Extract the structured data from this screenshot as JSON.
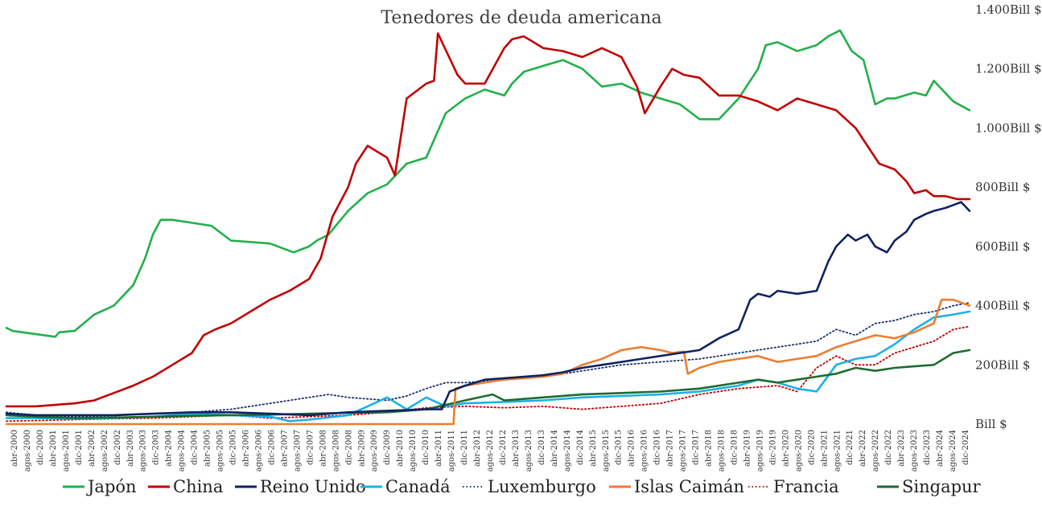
{
  "chart_data": {
    "type": "line",
    "title": "Tenedores de deuda americana",
    "y_unit_suffix": "Bill $",
    "ylim": [
      0,
      1400
    ],
    "yticks": [
      {
        "value": 0,
        "label": "Bill $"
      },
      {
        "value": 200,
        "label": "200Bill $"
      },
      {
        "value": 400,
        "label": "400Bill $"
      },
      {
        "value": 600,
        "label": "600Bill $"
      },
      {
        "value": 800,
        "label": "800Bill $"
      },
      {
        "value": 1000,
        "label": "1.000Bill $"
      },
      {
        "value": 1200,
        "label": "1.200Bill $"
      },
      {
        "value": 1400,
        "label": "1.400Bill $"
      }
    ],
    "xlim": [
      2000.25,
      2024.917
    ],
    "x_tick_labels": [
      "abr-2000",
      "agos-2000",
      "dic-2000",
      "abr-2001",
      "agos-2001",
      "dic-2001",
      "abr-2002",
      "agos-2002",
      "dic-2002",
      "abr-2003",
      "agos-2003",
      "dic-2003",
      "abr-2004",
      "agos-2004",
      "dic-2004",
      "abr-2005",
      "agos-2005",
      "dic-2005",
      "abr-2006",
      "agos-2006",
      "dic-2006",
      "abr-2007",
      "agos-2007",
      "dic-2007",
      "abr-2008",
      "agos-2008",
      "dic-2008",
      "abr-2009",
      "agos-2009",
      "dic-2009",
      "abr-2010",
      "agos-2010",
      "dic-2010",
      "abr-2011",
      "agos-2011",
      "dic-2011",
      "abr-2012",
      "agos-2012",
      "dic-2012",
      "abr-2013",
      "agos-2013",
      "dic-2013",
      "abr-2014",
      "agos-2014",
      "dic-2014",
      "abr-2015",
      "agos-2015",
      "dic-2015",
      "abr-2016",
      "agos-2016",
      "dic-2016",
      "abr-2017",
      "agos-2017",
      "dic-2017",
      "abr-2018",
      "agos-2018",
      "dic-2018",
      "abr-2019",
      "agos-2019",
      "dic-2019",
      "abr-2020",
      "agos-2020",
      "dic-2020",
      "abr-2021",
      "agos-2021",
      "dic-2021",
      "abr-2022",
      "agos-2022",
      "dic-2022",
      "abr-2023",
      "agos-2023",
      "dic-2023",
      "abr-2024",
      "agos-2024",
      "dic-2024"
    ],
    "legend_position": "bottom",
    "series": [
      {
        "name": "Japón",
        "color": "#22b04b",
        "dash": "solid",
        "x": [
          2000.25,
          2000.4,
          2001.5,
          2001.6,
          2002.0,
          2002.5,
          2003.0,
          2003.5,
          2003.8,
          2004.0,
          2004.2,
          2004.5,
          2005.0,
          2005.5,
          2006.0,
          2006.5,
          2007.0,
          2007.6,
          2008.0,
          2008.2,
          2008.5,
          2009.0,
          2009.5,
          2010.0,
          2010.5,
          2011.0,
          2011.5,
          2011.8,
          2012.0,
          2012.5,
          2013.0,
          2013.2,
          2013.5,
          2014.0,
          2014.5,
          2015.0,
          2015.5,
          2016.0,
          2016.5,
          2017.0,
          2017.5,
          2018.0,
          2018.5,
          2019.0,
          2019.2,
          2019.5,
          2019.7,
          2020.0,
          2020.5,
          2021.0,
          2021.3,
          2021.6,
          2021.9,
          2022.2,
          2022.5,
          2022.8,
          2023.0,
          2023.5,
          2023.8,
          2024.0,
          2024.5,
          2024.917
        ],
        "values": [
          325,
          315,
          295,
          310,
          315,
          370,
          400,
          470,
          560,
          640,
          690,
          690,
          680,
          670,
          620,
          615,
          610,
          580,
          600,
          620,
          640,
          720,
          780,
          810,
          880,
          900,
          1050,
          1080,
          1100,
          1130,
          1110,
          1150,
          1190,
          1210,
          1230,
          1200,
          1140,
          1150,
          1120,
          1100,
          1080,
          1030,
          1030,
          1100,
          1140,
          1200,
          1280,
          1290,
          1260,
          1280,
          1310,
          1330,
          1260,
          1230,
          1080,
          1100,
          1100,
          1120,
          1110,
          1160,
          1090,
          1060
        ]
      },
      {
        "name": "China",
        "color": "#c00000",
        "dash": "solid",
        "x": [
          2000.25,
          2001.0,
          2002.0,
          2002.5,
          2003.0,
          2003.5,
          2004.0,
          2004.5,
          2005.0,
          2005.3,
          2005.6,
          2006.0,
          2006.5,
          2007.0,
          2007.5,
          2008.0,
          2008.3,
          2008.6,
          2009.0,
          2009.2,
          2009.5,
          2010.0,
          2010.2,
          2010.5,
          2011.0,
          2011.2,
          2011.3,
          2011.8,
          2012.0,
          2012.2,
          2012.5,
          2013.0,
          2013.2,
          2013.5,
          2014.0,
          2014.5,
          2015.0,
          2015.5,
          2016.0,
          2016.4,
          2016.6,
          2017.0,
          2017.3,
          2017.6,
          2018.0,
          2018.5,
          2019.0,
          2019.5,
          2020.0,
          2020.5,
          2021.0,
          2021.5,
          2022.0,
          2022.3,
          2022.6,
          2023.0,
          2023.3,
          2023.5,
          2023.8,
          2024.0,
          2024.3,
          2024.6,
          2024.917
        ],
        "values": [
          60,
          60,
          70,
          80,
          105,
          130,
          160,
          200,
          240,
          300,
          320,
          340,
          380,
          420,
          450,
          490,
          560,
          700,
          800,
          880,
          940,
          900,
          840,
          1100,
          1150,
          1160,
          1320,
          1180,
          1150,
          1150,
          1150,
          1270,
          1300,
          1310,
          1270,
          1260,
          1240,
          1270,
          1240,
          1140,
          1050,
          1140,
          1200,
          1180,
          1170,
          1110,
          1110,
          1090,
          1060,
          1100,
          1080,
          1060,
          1000,
          940,
          880,
          860,
          820,
          780,
          790,
          770,
          770,
          760,
          760
        ]
      },
      {
        "name": "Reino Unido",
        "color": "#0f2262",
        "dash": "solid",
        "x": [
          2000.25,
          2001.0,
          2002.0,
          2003.0,
          2004.0,
          2005.0,
          2006.0,
          2007.0,
          2008.0,
          2009.0,
          2010.0,
          2011.0,
          2011.4,
          2011.6,
          2012.0,
          2012.5,
          2013.0,
          2014.0,
          2014.5,
          2015.0,
          2015.5,
          2016.0,
          2016.5,
          2017.0,
          2017.5,
          2018.0,
          2018.5,
          2019.0,
          2019.3,
          2019.5,
          2019.8,
          2020.0,
          2020.5,
          2021.0,
          2021.3,
          2021.5,
          2021.8,
          2022.0,
          2022.3,
          2022.5,
          2022.8,
          2023.0,
          2023.3,
          2023.5,
          2023.8,
          2024.0,
          2024.3,
          2024.5,
          2024.7,
          2024.917
        ],
        "values": [
          35,
          30,
          30,
          30,
          35,
          40,
          40,
          35,
          30,
          40,
          45,
          50,
          50,
          110,
          130,
          150,
          155,
          165,
          175,
          190,
          200,
          210,
          220,
          230,
          240,
          250,
          290,
          320,
          420,
          440,
          430,
          450,
          440,
          450,
          550,
          600,
          640,
          620,
          640,
          600,
          580,
          620,
          650,
          690,
          710,
          720,
          730,
          740,
          750,
          720
        ]
      },
      {
        "name": "Canadá",
        "color": "#1cb0e8",
        "dash": "solid",
        "x": [
          2000.25,
          2001.0,
          2002.0,
          2003.0,
          2004.0,
          2005.0,
          2006.0,
          2007.0,
          2007.5,
          2008.0,
          2009.0,
          2009.5,
          2010.0,
          2010.5,
          2011.0,
          2011.5,
          2012.0,
          2013.0,
          2014.0,
          2015.0,
          2016.0,
          2017.0,
          2018.0,
          2019.0,
          2019.5,
          2020.0,
          2020.5,
          2021.0,
          2021.5,
          2022.0,
          2022.5,
          2023.0,
          2023.5,
          2024.0,
          2024.5,
          2024.917
        ],
        "values": [
          20,
          20,
          18,
          20,
          25,
          35,
          30,
          25,
          10,
          15,
          30,
          60,
          90,
          50,
          90,
          60,
          70,
          75,
          80,
          90,
          95,
          100,
          110,
          130,
          150,
          140,
          120,
          110,
          200,
          220,
          230,
          270,
          320,
          360,
          370,
          380
        ]
      },
      {
        "name": "Luxemburgo",
        "color": "#17306e",
        "dash": "dotted",
        "x": [
          2000.25,
          2001.0,
          2002.0,
          2003.0,
          2004.0,
          2005.0,
          2006.0,
          2007.0,
          2008.0,
          2008.5,
          2009.0,
          2010.0,
          2010.5,
          2011.0,
          2011.5,
          2012.0,
          2013.0,
          2014.0,
          2015.0,
          2016.0,
          2017.0,
          2018.0,
          2019.0,
          2020.0,
          2021.0,
          2021.5,
          2022.0,
          2022.5,
          2023.0,
          2023.5,
          2024.0,
          2024.5,
          2024.917
        ],
        "values": [
          40,
          30,
          25,
          28,
          35,
          40,
          50,
          70,
          90,
          100,
          90,
          80,
          95,
          120,
          140,
          140,
          150,
          160,
          180,
          200,
          210,
          220,
          240,
          260,
          280,
          320,
          300,
          340,
          350,
          370,
          380,
          400,
          410
        ]
      },
      {
        "name": "Islas Caimán",
        "color": "#ed7d31",
        "dash": "solid",
        "x": [
          2000.25,
          2011.7,
          2011.75,
          2012.0,
          2012.5,
          2013.0,
          2013.5,
          2014.0,
          2014.5,
          2015.0,
          2015.5,
          2016.0,
          2016.5,
          2017.0,
          2017.3,
          2017.6,
          2017.7,
          2018.0,
          2018.5,
          2019.0,
          2019.5,
          2020.0,
          2020.5,
          2021.0,
          2021.5,
          2022.0,
          2022.5,
          2023.0,
          2023.5,
          2024.0,
          2024.2,
          2024.5,
          2024.917
        ],
        "values": [
          0,
          0,
          120,
          130,
          140,
          150,
          155,
          160,
          170,
          200,
          220,
          250,
          260,
          250,
          240,
          245,
          170,
          190,
          210,
          220,
          230,
          210,
          220,
          230,
          260,
          280,
          300,
          290,
          310,
          340,
          420,
          420,
          400
        ]
      },
      {
        "name": "Francia",
        "color": "#c00000",
        "dash": "dotted",
        "x": [
          2000.25,
          2001.0,
          2002.0,
          2003.0,
          2004.0,
          2005.0,
          2006.0,
          2007.0,
          2008.0,
          2009.0,
          2010.0,
          2011.0,
          2012.0,
          2013.0,
          2014.0,
          2015.0,
          2016.0,
          2017.0,
          2018.0,
          2019.0,
          2020.0,
          2020.5,
          2021.0,
          2021.5,
          2022.0,
          2022.5,
          2023.0,
          2023.5,
          2024.0,
          2024.5,
          2024.917
        ],
        "values": [
          10,
          12,
          15,
          18,
          20,
          25,
          30,
          20,
          25,
          30,
          40,
          55,
          60,
          55,
          60,
          50,
          60,
          70,
          100,
          120,
          130,
          110,
          190,
          230,
          200,
          200,
          240,
          260,
          280,
          320,
          330
        ]
      },
      {
        "name": "Singapur",
        "color": "#1e6b2e",
        "dash": "solid",
        "x": [
          2000.25,
          2001.0,
          2002.0,
          2003.0,
          2004.0,
          2005.0,
          2006.0,
          2007.0,
          2008.0,
          2009.0,
          2010.0,
          2011.0,
          2012.0,
          2012.7,
          2013.0,
          2014.0,
          2015.0,
          2016.0,
          2017.0,
          2018.0,
          2019.0,
          2019.5,
          2020.0,
          2020.5,
          2021.0,
          2021.5,
          2022.0,
          2022.5,
          2023.0,
          2023.5,
          2024.0,
          2024.5,
          2024.917
        ],
        "values": [
          30,
          25,
          20,
          22,
          25,
          28,
          30,
          32,
          35,
          38,
          40,
          50,
          80,
          100,
          80,
          90,
          100,
          105,
          110,
          120,
          140,
          150,
          140,
          150,
          160,
          170,
          190,
          180,
          190,
          195,
          200,
          240,
          250
        ]
      }
    ]
  }
}
